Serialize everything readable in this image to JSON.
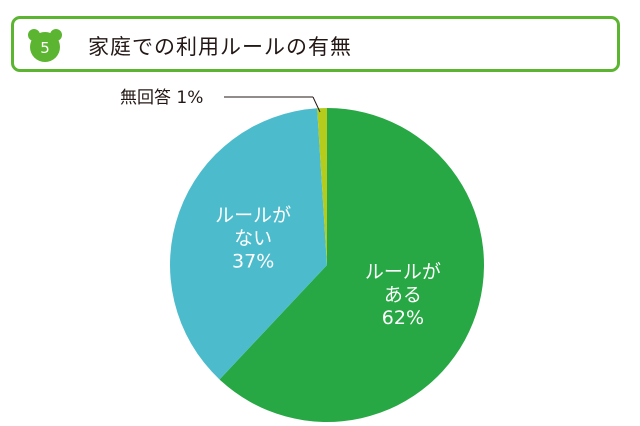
{
  "header": {
    "badge_number": "5",
    "title": "家庭での利用ルールの有無"
  },
  "colors": {
    "accent_green": "#5cb531",
    "slice_have": "#27a844",
    "slice_none": "#4cbccd",
    "slice_noanswer": "#b5cc1c"
  },
  "chart_data": {
    "type": "pie",
    "title": "家庭での利用ルールの有無",
    "slices": [
      {
        "label_lines": [
          "ルールが",
          "ある"
        ],
        "value": 62,
        "value_label": "62%",
        "color": "#27a844"
      },
      {
        "label_lines": [
          "ルールが",
          "ない"
        ],
        "value": 37,
        "value_label": "37%",
        "color": "#4cbccd"
      },
      {
        "label_lines": [
          "無回答"
        ],
        "value": 1,
        "value_label": "1%",
        "color": "#b5cc1c"
      }
    ],
    "start_angle_deg": 0,
    "direction": "clockwise",
    "callout": {
      "text": "無回答  1%"
    }
  }
}
